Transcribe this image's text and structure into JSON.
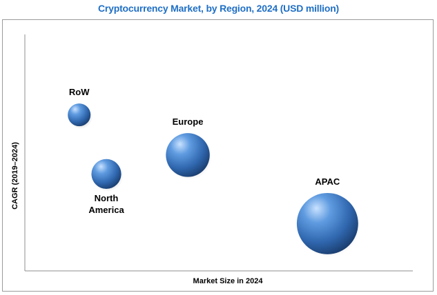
{
  "chart_data": {
    "type": "scatter",
    "title": "Cryptocurrency Market, by Region, 2024 (USD million)",
    "xlabel": "Market Size in 2024",
    "ylabel": "CAGR (2019–2024)",
    "xlim": [
      0,
      100
    ],
    "ylim": [
      0,
      100
    ],
    "grid": false,
    "legend": "none",
    "bubble_color": "#3a78c4",
    "series": [
      {
        "points": [
          {
            "label": [
              "RoW"
            ],
            "x": 14,
            "y": 66,
            "size": 13
          },
          {
            "label": [
              "North",
              "America"
            ],
            "x": 21,
            "y": 41,
            "size": 17
          },
          {
            "label": [
              "Europe"
            ],
            "x": 42,
            "y": 49,
            "size": 25
          },
          {
            "label": [
              "APAC"
            ],
            "x": 78,
            "y": 20,
            "size": 35
          }
        ]
      }
    ]
  }
}
